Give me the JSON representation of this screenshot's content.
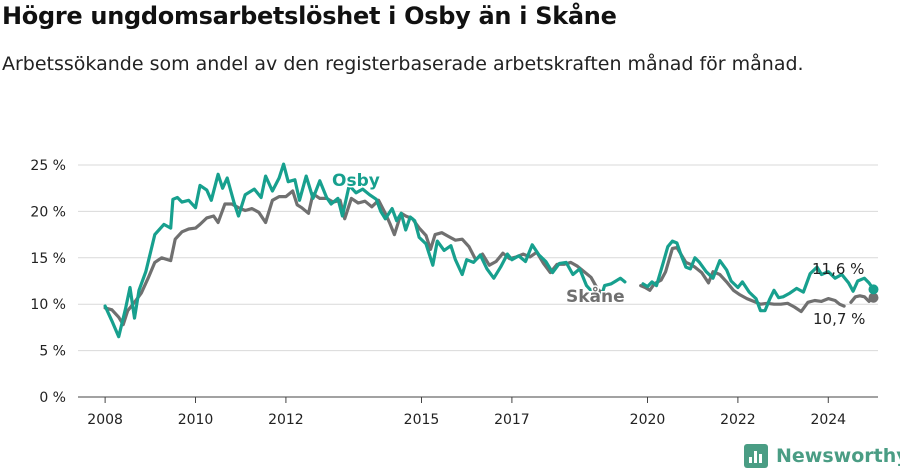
{
  "title": "Högre ungdomsarbetslöshet i Osby än i Skåne",
  "subtitle": "Arbetssökande som andel av den registerbaserade arbetskraften månad för månad.",
  "brand": {
    "name": "Newsworthy"
  },
  "colors": {
    "osby": "#17a08e",
    "skane": "#707070",
    "grid": "#d9d9d9"
  },
  "chart_data": {
    "type": "line",
    "title": "Högre ungdomsarbetslöshet i Osby än i Skåne",
    "xlabel": "",
    "ylabel": "",
    "xlim": [
      2007.4,
      2025.1
    ],
    "ylim": [
      0,
      25
    ],
    "y_ticks": [
      0,
      5,
      10,
      15,
      20,
      25
    ],
    "y_tick_labels": [
      "0 %",
      "5 %",
      "10 %",
      "15 %",
      "20 %",
      "25 %"
    ],
    "x_ticks": [
      2008,
      2010,
      2012,
      2015,
      2017,
      2020,
      2022,
      2024
    ],
    "x_tick_labels": [
      "2008",
      "2010",
      "2012",
      "2015",
      "2017",
      "2020",
      "2022",
      "2024"
    ],
    "grid": true,
    "series": [
      {
        "name": "Osby",
        "color": "#17a08e",
        "end_label": "11,6 %",
        "segments": [
          [
            [
              2008.0,
              9.8
            ],
            [
              2008.15,
              8.2
            ],
            [
              2008.3,
              6.5
            ],
            [
              2008.45,
              9.5
            ],
            [
              2008.55,
              11.8
            ],
            [
              2008.65,
              8.5
            ],
            [
              2008.75,
              11.5
            ],
            [
              2008.9,
              13.5
            ],
            [
              2009.0,
              15.5
            ],
            [
              2009.1,
              17.5
            ],
            [
              2009.3,
              18.6
            ],
            [
              2009.45,
              18.2
            ],
            [
              2009.5,
              21.3
            ],
            [
              2009.6,
              21.5
            ],
            [
              2009.7,
              21.0
            ],
            [
              2009.85,
              21.2
            ],
            [
              2010.0,
              20.4
            ],
            [
              2010.1,
              22.8
            ],
            [
              2010.25,
              22.3
            ],
            [
              2010.35,
              21.2
            ],
            [
              2010.5,
              24.0
            ],
            [
              2010.6,
              22.5
            ],
            [
              2010.7,
              23.6
            ],
            [
              2010.85,
              21.0
            ],
            [
              2010.95,
              19.5
            ],
            [
              2011.1,
              21.8
            ],
            [
              2011.3,
              22.4
            ],
            [
              2011.45,
              21.5
            ],
            [
              2011.55,
              23.8
            ],
            [
              2011.7,
              22.2
            ],
            [
              2011.85,
              23.6
            ],
            [
              2011.95,
              25.1
            ],
            [
              2012.05,
              23.2
            ],
            [
              2012.2,
              23.4
            ],
            [
              2012.3,
              21.2
            ],
            [
              2012.45,
              23.8
            ],
            [
              2012.6,
              21.4
            ],
            [
              2012.75,
              23.3
            ],
            [
              2012.9,
              21.5
            ],
            [
              2013.0,
              20.8
            ],
            [
              2013.15,
              21.4
            ],
            [
              2013.25,
              19.5
            ],
            [
              2013.4,
              22.8
            ],
            [
              2013.55,
              22.0
            ],
            [
              2013.7,
              22.4
            ],
            [
              2013.85,
              21.8
            ],
            [
              2014.0,
              21.3
            ],
            [
              2014.1,
              20.0
            ],
            [
              2014.2,
              19.2
            ],
            [
              2014.35,
              20.3
            ],
            [
              2014.45,
              19.0
            ],
            [
              2014.55,
              19.8
            ],
            [
              2014.65,
              18.0
            ],
            [
              2014.75,
              19.4
            ],
            [
              2014.85,
              19.0
            ],
            [
              2014.95,
              17.2
            ],
            [
              2015.1,
              16.5
            ],
            [
              2015.25,
              14.2
            ],
            [
              2015.35,
              16.8
            ],
            [
              2015.5,
              15.8
            ],
            [
              2015.65,
              16.3
            ],
            [
              2015.75,
              14.8
            ],
            [
              2015.9,
              13.2
            ],
            [
              2016.0,
              14.8
            ],
            [
              2016.15,
              14.5
            ],
            [
              2016.3,
              15.3
            ],
            [
              2016.45,
              13.8
            ],
            [
              2016.6,
              12.8
            ],
            [
              2016.75,
              14.0
            ],
            [
              2016.9,
              15.4
            ],
            [
              2017.0,
              14.8
            ],
            [
              2017.15,
              15.2
            ],
            [
              2017.3,
              14.6
            ],
            [
              2017.45,
              16.4
            ],
            [
              2017.6,
              15.3
            ],
            [
              2017.75,
              14.6
            ],
            [
              2017.9,
              13.4
            ],
            [
              2018.05,
              14.4
            ],
            [
              2018.2,
              14.5
            ],
            [
              2018.35,
              13.2
            ],
            [
              2018.5,
              13.8
            ],
            [
              2018.65,
              12.0
            ],
            [
              2018.8,
              11.2
            ],
            [
              2018.95,
              10.4
            ],
            [
              2019.05,
              12.0
            ],
            [
              2019.2,
              12.2
            ],
            [
              2019.3,
              12.5
            ],
            [
              2019.4,
              12.8
            ],
            [
              2019.5,
              12.4
            ]
          ],
          [
            [
              2019.9,
              12.2
            ],
            [
              2020.0,
              11.9
            ],
            [
              2020.1,
              12.4
            ],
            [
              2020.2,
              12.0
            ],
            [
              2020.35,
              14.5
            ],
            [
              2020.45,
              16.2
            ],
            [
              2020.55,
              16.8
            ],
            [
              2020.65,
              16.6
            ],
            [
              2020.75,
              15.2
            ],
            [
              2020.85,
              14.0
            ],
            [
              2020.95,
              13.8
            ],
            [
              2021.05,
              15.0
            ],
            [
              2021.15,
              14.5
            ],
            [
              2021.3,
              13.5
            ],
            [
              2021.45,
              12.8
            ],
            [
              2021.6,
              14.7
            ],
            [
              2021.75,
              13.7
            ],
            [
              2021.85,
              12.5
            ],
            [
              2022.0,
              11.8
            ],
            [
              2022.1,
              12.4
            ],
            [
              2022.25,
              11.3
            ],
            [
              2022.4,
              10.6
            ],
            [
              2022.5,
              9.3
            ],
            [
              2022.6,
              9.3
            ],
            [
              2022.7,
              10.5
            ],
            [
              2022.8,
              11.5
            ],
            [
              2022.9,
              10.7
            ],
            [
              2023.0,
              10.8
            ],
            [
              2023.15,
              11.2
            ],
            [
              2023.3,
              11.7
            ],
            [
              2023.45,
              11.3
            ],
            [
              2023.6,
              13.3
            ],
            [
              2023.75,
              14.0
            ],
            [
              2023.85,
              13.2
            ],
            [
              2024.0,
              13.5
            ],
            [
              2024.15,
              12.8
            ],
            [
              2024.3,
              13.2
            ],
            [
              2024.45,
              12.3
            ],
            [
              2024.55,
              11.4
            ],
            [
              2024.65,
              12.5
            ],
            [
              2024.8,
              12.8
            ],
            [
              2024.9,
              12.3
            ],
            [
              2025.0,
              11.6
            ]
          ]
        ]
      },
      {
        "name": "Skåne",
        "color": "#707070",
        "end_label": "10,7 %",
        "segments": [
          [
            [
              2008.0,
              9.6
            ],
            [
              2008.15,
              9.4
            ],
            [
              2008.3,
              8.6
            ],
            [
              2008.4,
              7.8
            ],
            [
              2008.5,
              9.3
            ],
            [
              2008.65,
              10.2
            ],
            [
              2008.8,
              11.2
            ],
            [
              2008.95,
              12.8
            ],
            [
              2009.1,
              14.5
            ],
            [
              2009.25,
              15.0
            ],
            [
              2009.45,
              14.7
            ],
            [
              2009.55,
              17.0
            ],
            [
              2009.7,
              17.8
            ],
            [
              2009.85,
              18.1
            ],
            [
              2010.0,
              18.2
            ],
            [
              2010.1,
              18.6
            ],
            [
              2010.25,
              19.3
            ],
            [
              2010.4,
              19.5
            ],
            [
              2010.5,
              18.8
            ],
            [
              2010.65,
              20.8
            ],
            [
              2010.8,
              20.8
            ],
            [
              2010.95,
              20.4
            ],
            [
              2011.1,
              20.1
            ],
            [
              2011.25,
              20.3
            ],
            [
              2011.4,
              19.9
            ],
            [
              2011.55,
              18.8
            ],
            [
              2011.7,
              21.2
            ],
            [
              2011.85,
              21.6
            ],
            [
              2012.0,
              21.6
            ],
            [
              2012.15,
              22.2
            ],
            [
              2012.25,
              20.7
            ],
            [
              2012.35,
              20.4
            ],
            [
              2012.5,
              19.8
            ],
            [
              2012.6,
              21.9
            ],
            [
              2012.75,
              21.4
            ],
            [
              2012.9,
              21.4
            ],
            [
              2013.05,
              21.0
            ],
            [
              2013.2,
              21.2
            ],
            [
              2013.3,
              19.2
            ],
            [
              2013.45,
              21.4
            ],
            [
              2013.6,
              20.9
            ],
            [
              2013.75,
              21.1
            ],
            [
              2013.9,
              20.5
            ],
            [
              2014.05,
              21.2
            ],
            [
              2014.2,
              19.8
            ],
            [
              2014.3,
              18.7
            ],
            [
              2014.4,
              17.5
            ],
            [
              2014.55,
              19.8
            ],
            [
              2014.65,
              19.5
            ],
            [
              2014.8,
              19.2
            ],
            [
              2014.95,
              18.2
            ],
            [
              2015.1,
              17.4
            ],
            [
              2015.2,
              15.9
            ],
            [
              2015.3,
              17.5
            ],
            [
              2015.45,
              17.7
            ],
            [
              2015.6,
              17.3
            ],
            [
              2015.75,
              16.9
            ],
            [
              2015.9,
              17.0
            ],
            [
              2016.05,
              16.2
            ],
            [
              2016.2,
              14.8
            ],
            [
              2016.35,
              15.4
            ],
            [
              2016.5,
              14.2
            ],
            [
              2016.65,
              14.6
            ],
            [
              2016.8,
              15.5
            ],
            [
              2016.95,
              14.9
            ],
            [
              2017.1,
              15.1
            ],
            [
              2017.25,
              15.4
            ],
            [
              2017.4,
              15.1
            ],
            [
              2017.55,
              15.6
            ],
            [
              2017.7,
              14.4
            ],
            [
              2017.85,
              13.4
            ],
            [
              2018.0,
              14.3
            ],
            [
              2018.15,
              14.3
            ],
            [
              2018.3,
              14.5
            ],
            [
              2018.45,
              14.1
            ],
            [
              2018.6,
              13.5
            ],
            [
              2018.75,
              12.9
            ],
            [
              2018.9,
              11.6
            ],
            [
              2019.0,
              11.2
            ]
          ],
          [
            [
              2019.85,
              12.0
            ],
            [
              2019.95,
              11.8
            ],
            [
              2020.05,
              11.5
            ],
            [
              2020.15,
              12.2
            ],
            [
              2020.3,
              12.6
            ],
            [
              2020.4,
              13.5
            ],
            [
              2020.55,
              16.0
            ],
            [
              2020.65,
              16.1
            ],
            [
              2020.75,
              15.3
            ],
            [
              2020.85,
              14.5
            ],
            [
              2020.95,
              14.3
            ],
            [
              2021.05,
              14.0
            ],
            [
              2021.2,
              13.4
            ],
            [
              2021.35,
              12.3
            ],
            [
              2021.45,
              13.5
            ],
            [
              2021.6,
              13.2
            ],
            [
              2021.75,
              12.4
            ],
            [
              2021.9,
              11.5
            ],
            [
              2022.05,
              11.0
            ],
            [
              2022.2,
              10.6
            ],
            [
              2022.35,
              10.3
            ],
            [
              2022.5,
              10.0
            ],
            [
              2022.65,
              10.1
            ],
            [
              2022.8,
              10.0
            ],
            [
              2022.95,
              10.0
            ],
            [
              2023.1,
              10.1
            ],
            [
              2023.25,
              9.7
            ],
            [
              2023.4,
              9.2
            ],
            [
              2023.55,
              10.2
            ],
            [
              2023.7,
              10.4
            ],
            [
              2023.85,
              10.3
            ],
            [
              2024.0,
              10.6
            ],
            [
              2024.15,
              10.4
            ],
            [
              2024.25,
              10.0
            ],
            [
              2024.35,
              9.8
            ]
          ],
          [
            [
              2024.5,
              10.2
            ],
            [
              2024.6,
              10.8
            ],
            [
              2024.7,
              10.9
            ],
            [
              2024.8,
              10.8
            ],
            [
              2024.9,
              10.3
            ],
            [
              2025.0,
              10.7
            ]
          ]
        ]
      }
    ]
  }
}
